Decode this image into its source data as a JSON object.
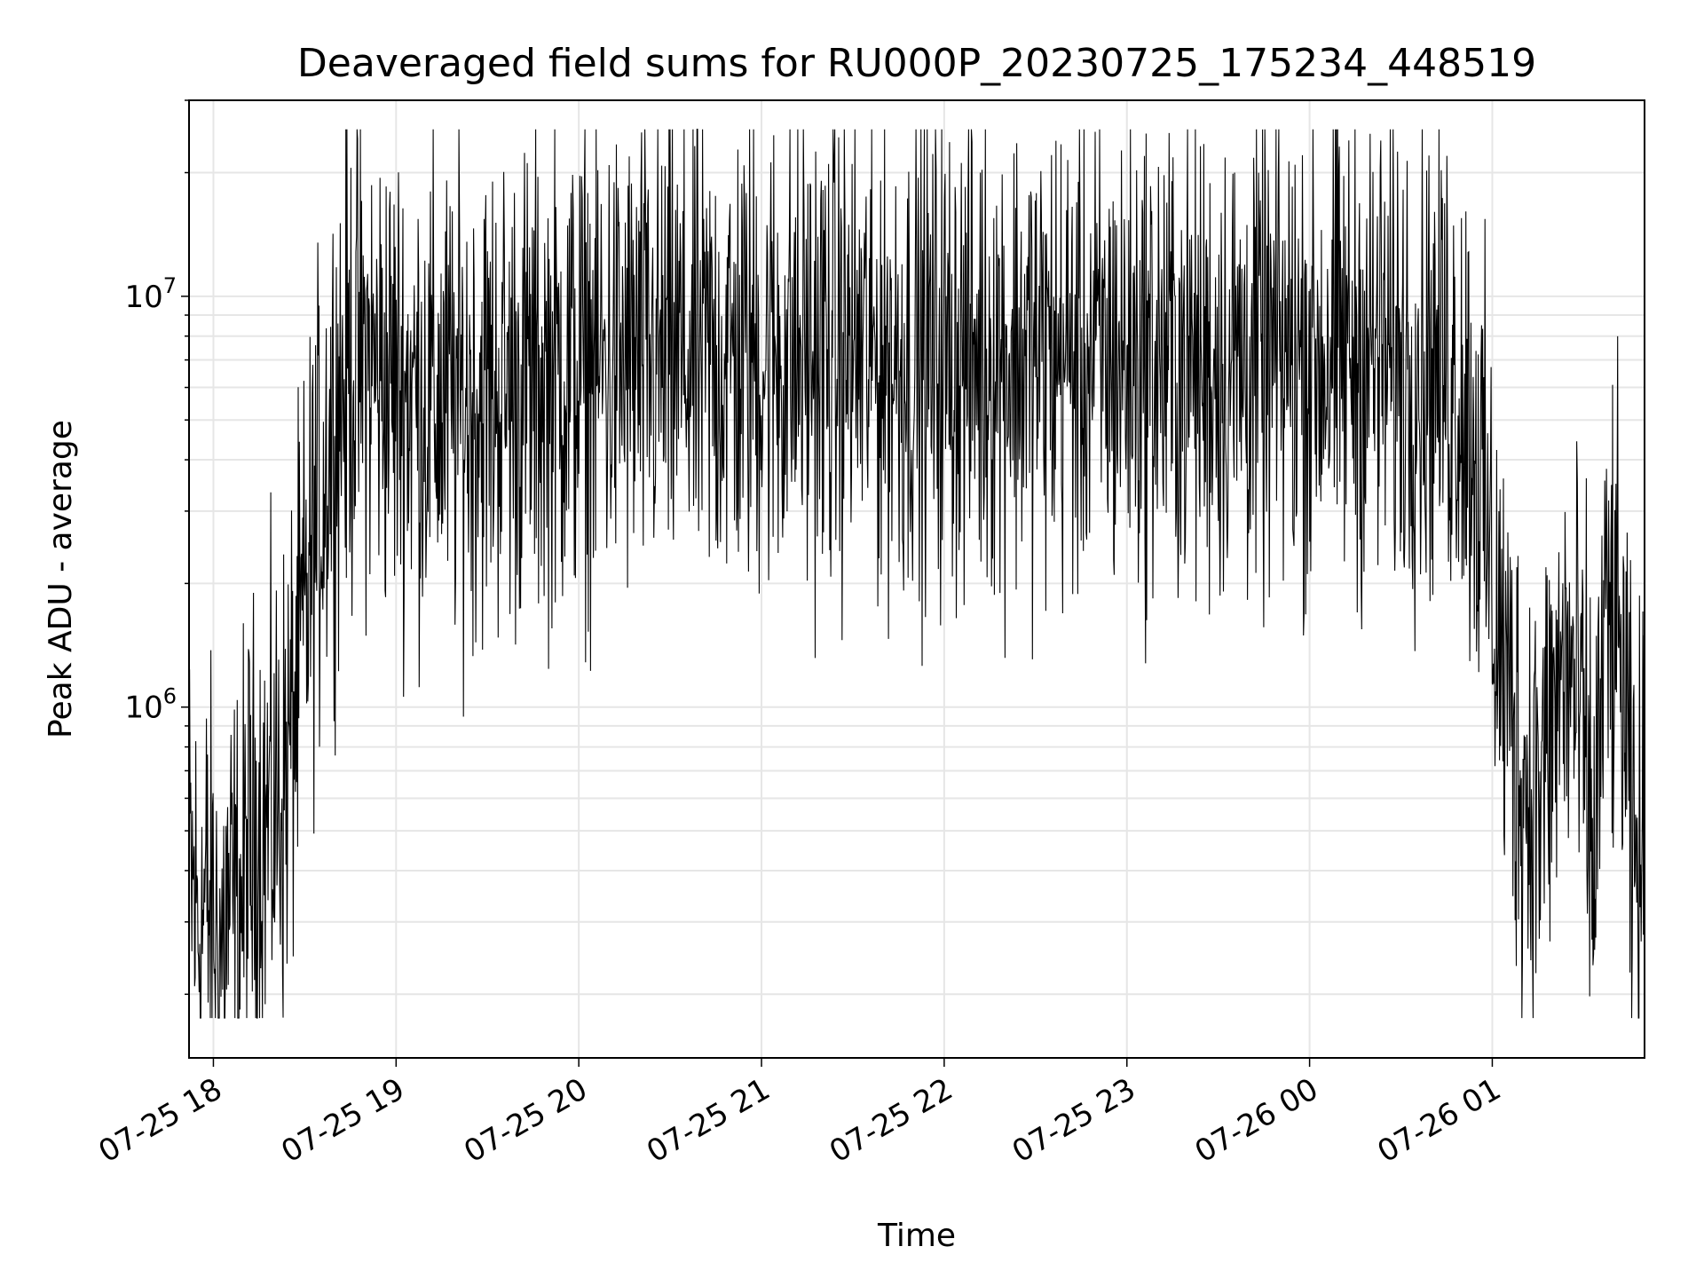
{
  "chart_data": {
    "type": "line",
    "title": "Deaveraged field sums for RU000P_20230725_175234_448519",
    "xlabel": "Time",
    "ylabel": "Peak ADU - average",
    "yscale": "log",
    "ylim": [
      140000,
      30000000
    ],
    "xlim": [
      "2023-07-25 17:52",
      "2023-07-26 01:50"
    ],
    "grid": true,
    "line_color": "#000000",
    "grid_color": "#e6e6e6",
    "x_ticks": [
      {
        "value": "2023-07-25 18:00",
        "label": "07-25 18"
      },
      {
        "value": "2023-07-25 19:00",
        "label": "07-25 19"
      },
      {
        "value": "2023-07-25 20:00",
        "label": "07-25 20"
      },
      {
        "value": "2023-07-25 21:00",
        "label": "07-25 21"
      },
      {
        "value": "2023-07-25 22:00",
        "label": "07-25 22"
      },
      {
        "value": "2023-07-25 23:00",
        "label": "07-25 23"
      },
      {
        "value": "2023-07-26 00:00",
        "label": "07-26 00"
      },
      {
        "value": "2023-07-26 01:00",
        "label": "07-26 01"
      }
    ],
    "y_ticks": [
      {
        "value": 1000000,
        "base": "10",
        "exp": "6"
      },
      {
        "value": 10000000,
        "base": "10",
        "exp": "7"
      }
    ],
    "series": [
      {
        "values": [
          [
            "2023-07-25 17:52",
            400000
          ],
          [
            "2023-07-25 17:55",
            300000
          ],
          [
            "2023-07-25 17:58",
            330000
          ],
          [
            "2023-07-25 18:02",
            250000
          ],
          [
            "2023-07-25 18:05",
            320000
          ],
          [
            "2023-07-25 18:08",
            300000
          ],
          [
            "2023-07-25 18:11",
            420000
          ],
          [
            "2023-07-25 18:14",
            480000
          ],
          [
            "2023-07-25 18:17",
            520000
          ],
          [
            "2023-07-25 18:20",
            560000
          ],
          [
            "2023-07-25 18:23",
            650000
          ],
          [
            "2023-07-25 18:26",
            900000
          ],
          [
            "2023-07-25 18:29",
            1400000
          ],
          [
            "2023-07-25 18:32",
            2200000
          ],
          [
            "2023-07-25 18:35",
            3200000
          ],
          [
            "2023-07-25 18:38",
            4500000
          ],
          [
            "2023-07-25 18:42",
            6000000
          ],
          [
            "2023-07-25 18:46",
            6800000
          ],
          [
            "2023-07-25 18:50",
            7000000
          ],
          [
            "2023-07-25 18:55",
            6500000
          ],
          [
            "2023-07-25 19:00",
            6200000
          ],
          [
            "2023-07-25 19:10",
            5600000
          ],
          [
            "2023-07-25 19:20",
            5400000
          ],
          [
            "2023-07-25 19:30",
            5800000
          ],
          [
            "2023-07-25 19:40",
            6000000
          ],
          [
            "2023-07-25 19:50",
            6300000
          ],
          [
            "2023-07-25 20:00",
            6600000
          ],
          [
            "2023-07-25 20:15",
            6800000
          ],
          [
            "2023-07-25 20:30",
            7000000
          ],
          [
            "2023-07-25 20:45",
            7000000
          ],
          [
            "2023-07-25 21:00",
            7200000
          ],
          [
            "2023-07-25 21:15",
            7200000
          ],
          [
            "2023-07-25 21:30",
            7300000
          ],
          [
            "2023-07-25 21:45",
            7000000
          ],
          [
            "2023-07-25 22:00",
            7100000
          ],
          [
            "2023-07-25 22:15",
            7300000
          ],
          [
            "2023-07-25 22:30",
            7200000
          ],
          [
            "2023-07-25 22:45",
            7000000
          ],
          [
            "2023-07-25 23:00",
            7000000
          ],
          [
            "2023-07-25 23:15",
            7000000
          ],
          [
            "2023-07-25 23:30",
            6800000
          ],
          [
            "2023-07-25 23:45",
            7000000
          ],
          [
            "2023-07-26 00:00",
            7200000
          ],
          [
            "2023-07-26 00:15",
            7300000
          ],
          [
            "2023-07-26 00:30",
            7000000
          ],
          [
            "2023-07-26 00:45",
            6800000
          ],
          [
            "2023-07-26 00:52",
            5500000
          ],
          [
            "2023-07-26 00:56",
            3500000
          ],
          [
            "2023-07-26 01:00",
            2000000
          ],
          [
            "2023-07-26 01:04",
            1200000
          ],
          [
            "2023-07-26 01:08",
            800000
          ],
          [
            "2023-07-26 01:12",
            600000
          ],
          [
            "2023-07-26 01:16",
            650000
          ],
          [
            "2023-07-26 01:20",
            900000
          ],
          [
            "2023-07-26 01:24",
            1300000
          ],
          [
            "2023-07-26 01:28",
            1000000
          ],
          [
            "2023-07-26 01:31",
            700000
          ],
          [
            "2023-07-26 01:33",
            400000
          ],
          [
            "2023-07-26 01:37",
            1500000
          ],
          [
            "2023-07-26 01:40",
            1600000
          ],
          [
            "2023-07-26 01:43",
            1100000
          ],
          [
            "2023-07-26 01:46",
            400000
          ],
          [
            "2023-07-26 01:50",
            420000
          ]
        ]
      }
    ]
  }
}
